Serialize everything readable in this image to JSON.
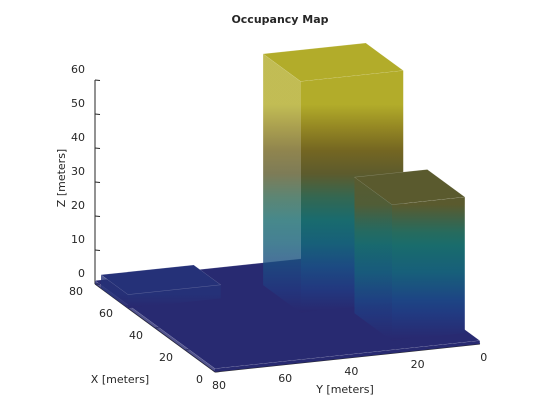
{
  "chart_data": {
    "type": "occupancy3d",
    "title": "Occupancy Map",
    "xlabel": "X [meters]",
    "ylabel": "Y [meters]",
    "zlabel": "Z [meters]",
    "xlim": [
      0,
      80
    ],
    "ylim": [
      0,
      80
    ],
    "zlim": [
      0,
      60
    ],
    "xticks": [
      0,
      20,
      40,
      60,
      80
    ],
    "yticks": [
      0,
      20,
      40,
      60,
      80
    ],
    "zticks": [
      0,
      10,
      20,
      30,
      40,
      50,
      60
    ],
    "colormap": [
      "#29286f",
      "#1f3f86",
      "#175f7a",
      "#1a6f69",
      "#5a5a2e",
      "#7c6a1e",
      "#b2ac2a"
    ],
    "blocks": [
      {
        "x": [
          0,
          80
        ],
        "y": [
          0,
          80
        ],
        "height": 1
      },
      {
        "x": [
          40,
          65
        ],
        "y": [
          5,
          36
        ],
        "height": 68
      },
      {
        "x": [
          58,
          76
        ],
        "y": [
          52,
          80
        ],
        "height": 4
      },
      {
        "x": [
          10,
          35
        ],
        "y": [
          0,
          22
        ],
        "height": 40
      }
    ]
  }
}
